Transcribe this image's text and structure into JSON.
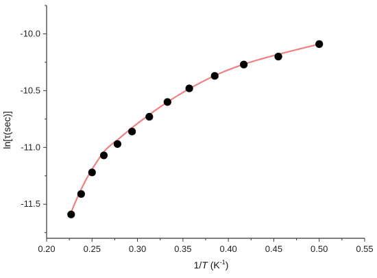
{
  "chart_data": {
    "type": "scatter",
    "xlabel_prefix": "1/",
    "xlabel_var": "T",
    "xlabel_unit": " (K",
    "xlabel_exp": "-1",
    "xlabel_close": ")",
    "ylabel": "ln[τ(sec)]",
    "xlim": [
      0.2,
      0.55
    ],
    "ylim": [
      -11.8,
      -9.75
    ],
    "xticks": [
      "0.20",
      "0.25",
      "0.30",
      "0.35",
      "0.40",
      "0.45",
      "0.50",
      "0.55"
    ],
    "yticks": [
      "-10.0",
      "-10.5",
      "-11.0",
      "-11.5"
    ],
    "grid": false,
    "series": [
      {
        "kind": "points",
        "color": "#000000",
        "x": [
          0.227,
          0.238,
          0.25,
          0.263,
          0.278,
          0.294,
          0.313,
          0.333,
          0.357,
          0.385,
          0.417,
          0.455,
          0.5
        ],
        "y": [
          -11.59,
          -11.41,
          -11.22,
          -11.07,
          -10.97,
          -10.86,
          -10.73,
          -10.6,
          -10.48,
          -10.37,
          -10.27,
          -10.2,
          -10.09
        ]
      },
      {
        "kind": "fit-line",
        "color": "#f08080",
        "x": [
          0.227,
          0.235,
          0.245,
          0.255,
          0.265,
          0.28,
          0.295,
          0.315,
          0.335,
          0.36,
          0.39,
          0.42,
          0.455,
          0.5
        ],
        "y": [
          -11.57,
          -11.42,
          -11.26,
          -11.13,
          -11.02,
          -10.92,
          -10.82,
          -10.7,
          -10.59,
          -10.47,
          -10.35,
          -10.26,
          -10.18,
          -10.09
        ]
      }
    ]
  }
}
